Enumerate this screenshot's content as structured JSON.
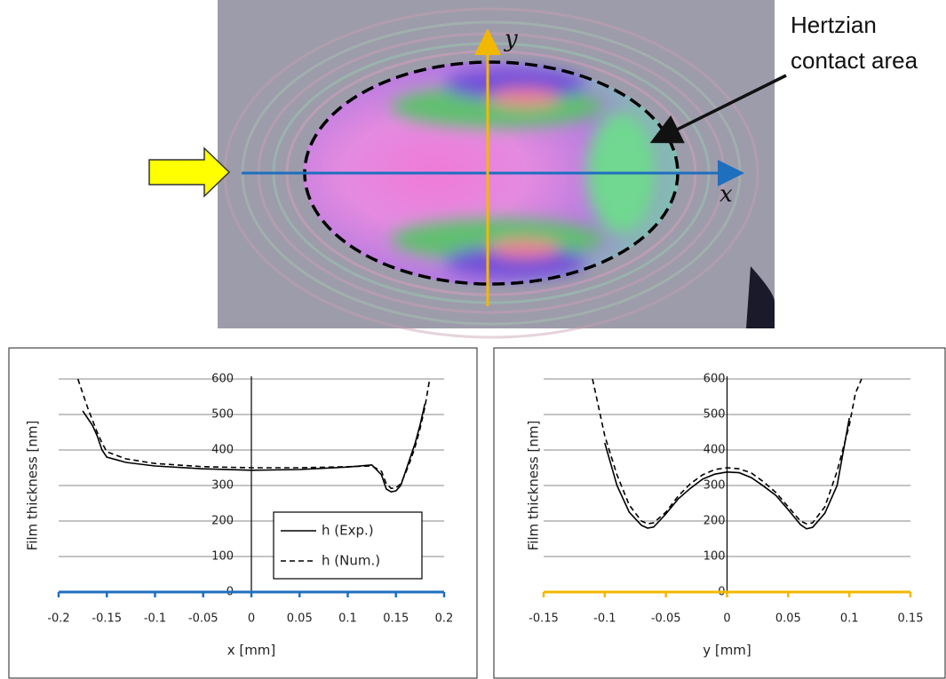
{
  "image": {
    "annotation_lines": [
      "Hertzian",
      "contact area"
    ],
    "x_label": "x",
    "y_label": "y"
  },
  "chart_data": [
    {
      "type": "line",
      "x_title": "x [mm]",
      "y_title": "Film thickness [nm]",
      "xlim": [
        -0.2,
        0.2
      ],
      "ylim": [
        0,
        600
      ],
      "xticks": [
        -0.2,
        -0.15,
        -0.1,
        -0.05,
        0,
        0.05,
        0.1,
        0.15,
        0.2
      ],
      "yticks": [
        0,
        100,
        200,
        300,
        400,
        500,
        600
      ],
      "grid": true,
      "axis_color": "#1f6fbf",
      "legend": "bottom-center",
      "x": [
        -0.18,
        -0.175,
        -0.17,
        -0.165,
        -0.16,
        -0.155,
        -0.15,
        -0.13,
        -0.1,
        -0.05,
        0,
        0.05,
        0.1,
        0.125,
        0.135,
        0.14,
        0.145,
        0.15,
        0.155,
        0.16,
        0.165,
        0.17,
        0.175,
        0.18,
        0.185
      ],
      "series": [
        {
          "name": "h (Exp.)",
          "color": "#000000",
          "style": "solid",
          "values": [
            null,
            510,
            490,
            470,
            440,
            400,
            380,
            365,
            355,
            347,
            343,
            345,
            352,
            358,
            330,
            290,
            282,
            285,
            300,
            340,
            380,
            420,
            470,
            530,
            null
          ]
        },
        {
          "name": "h (Num.)",
          "color": "#000000",
          "style": "dashed",
          "values": [
            600,
            560,
            520,
            485,
            450,
            420,
            395,
            375,
            362,
            353,
            350,
            350,
            353,
            355,
            340,
            305,
            292,
            293,
            305,
            335,
            370,
            410,
            460,
            520,
            600
          ]
        }
      ]
    },
    {
      "type": "line",
      "x_title": "y [mm]",
      "y_title": "Film thickness [nm]",
      "xlim": [
        -0.15,
        0.15
      ],
      "ylim": [
        0,
        600
      ],
      "xticks": [
        -0.15,
        -0.1,
        -0.05,
        0,
        0.05,
        0.1,
        0.15
      ],
      "yticks": [
        0,
        100,
        200,
        300,
        400,
        500,
        600
      ],
      "grid": true,
      "axis_color": "#f2b800",
      "x": [
        -0.11,
        -0.105,
        -0.1,
        -0.09,
        -0.08,
        -0.07,
        -0.065,
        -0.06,
        -0.05,
        -0.04,
        -0.03,
        -0.02,
        -0.01,
        0,
        0.01,
        0.02,
        0.03,
        0.04,
        0.05,
        0.06,
        0.065,
        0.07,
        0.08,
        0.09,
        0.1,
        0.105,
        0.11
      ],
      "series": [
        {
          "color": "#000000",
          "style": "solid",
          "values": [
            null,
            null,
            420,
            300,
            225,
            188,
            180,
            183,
            220,
            262,
            292,
            318,
            332,
            338,
            336,
            322,
            298,
            272,
            232,
            190,
            178,
            182,
            222,
            300,
            490,
            null,
            null
          ]
        },
        {
          "color": "#000000",
          "style": "dashed",
          "values": [
            600,
            520,
            440,
            330,
            245,
            200,
            192,
            195,
            225,
            270,
            305,
            330,
            345,
            350,
            347,
            335,
            310,
            280,
            240,
            200,
            192,
            195,
            240,
            340,
            470,
            560,
            600
          ]
        }
      ]
    }
  ]
}
